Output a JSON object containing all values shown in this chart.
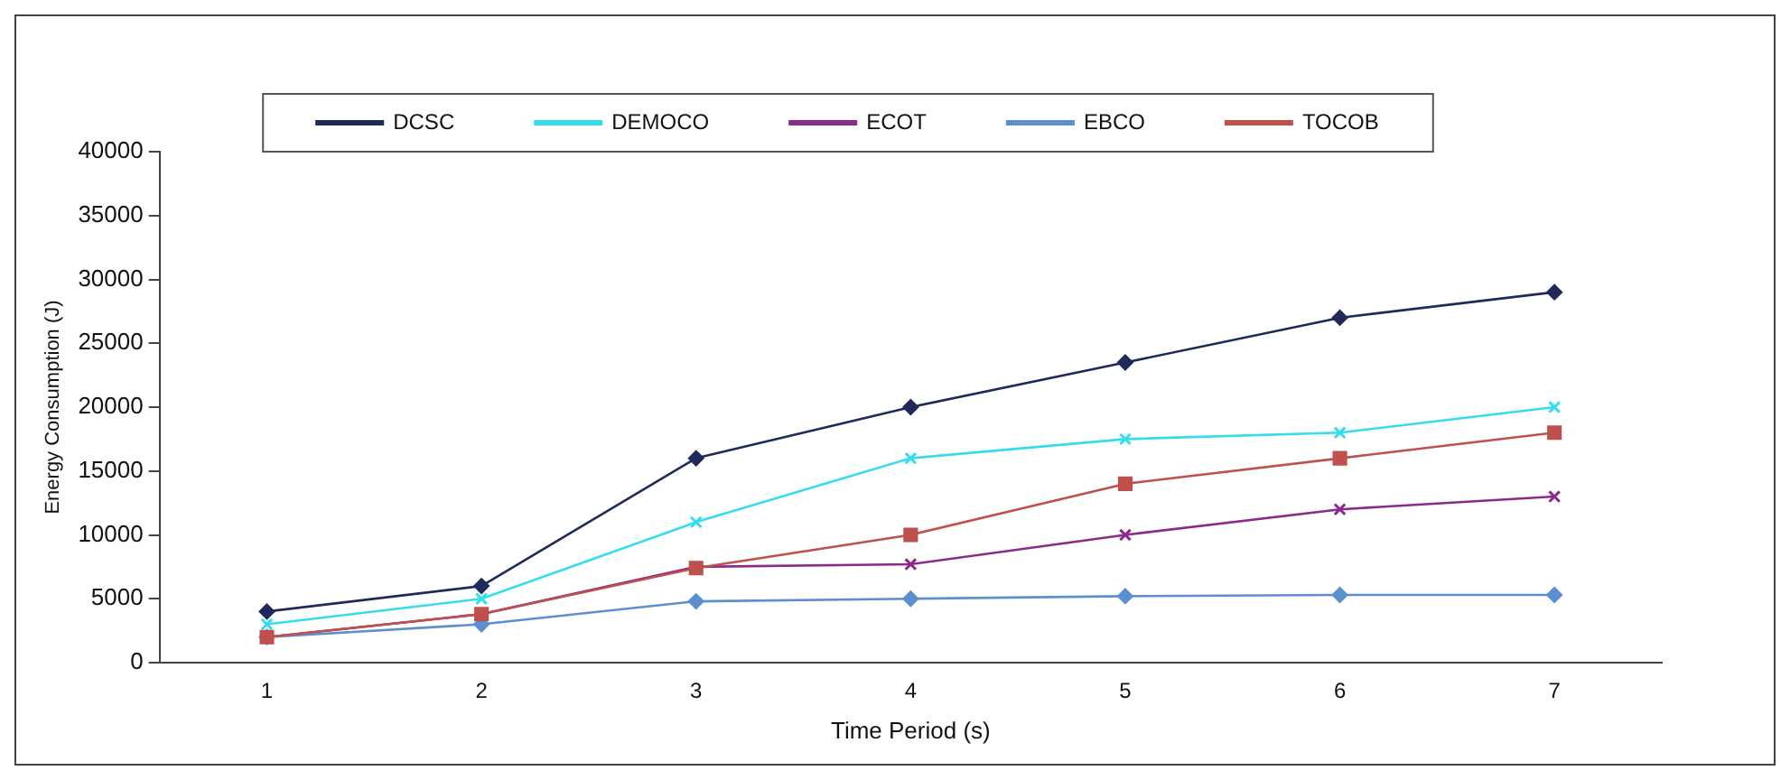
{
  "chart_data": {
    "type": "line",
    "xlabel": "Time Period (s)",
    "ylabel": "Energy Consumption (J)",
    "categories": [
      "1",
      "2",
      "3",
      "4",
      "5",
      "6",
      "7"
    ],
    "series": [
      {
        "name": "DCSC",
        "color": "#1f2a5a",
        "marker": "diamond",
        "values": [
          4000,
          6000,
          16000,
          20000,
          23500,
          27000,
          29000
        ]
      },
      {
        "name": "DEMOCO",
        "color": "#33ddee",
        "marker": "cross",
        "values": [
          3000,
          5000,
          11000,
          16000,
          17500,
          18000,
          20000
        ]
      },
      {
        "name": "ECOT",
        "color": "#8b2a8b",
        "marker": "cross",
        "values": [
          2000,
          3800,
          7500,
          7700,
          10000,
          12000,
          13000
        ]
      },
      {
        "name": "EBCO",
        "color": "#5b8fd0",
        "marker": "diamond",
        "values": [
          2000,
          3000,
          4800,
          5000,
          5200,
          5300,
          5300
        ]
      },
      {
        "name": "TOCOB",
        "color": "#c0504d",
        "marker": "square",
        "values": [
          2000,
          3800,
          7400,
          10000,
          14000,
          16000,
          18000
        ]
      }
    ],
    "ylim": [
      0,
      40000
    ],
    "yticks": [
      0,
      5000,
      10000,
      15000,
      20000,
      25000,
      30000,
      35000,
      40000
    ],
    "grid": false,
    "legend": "top",
    "line_style": "solid"
  }
}
